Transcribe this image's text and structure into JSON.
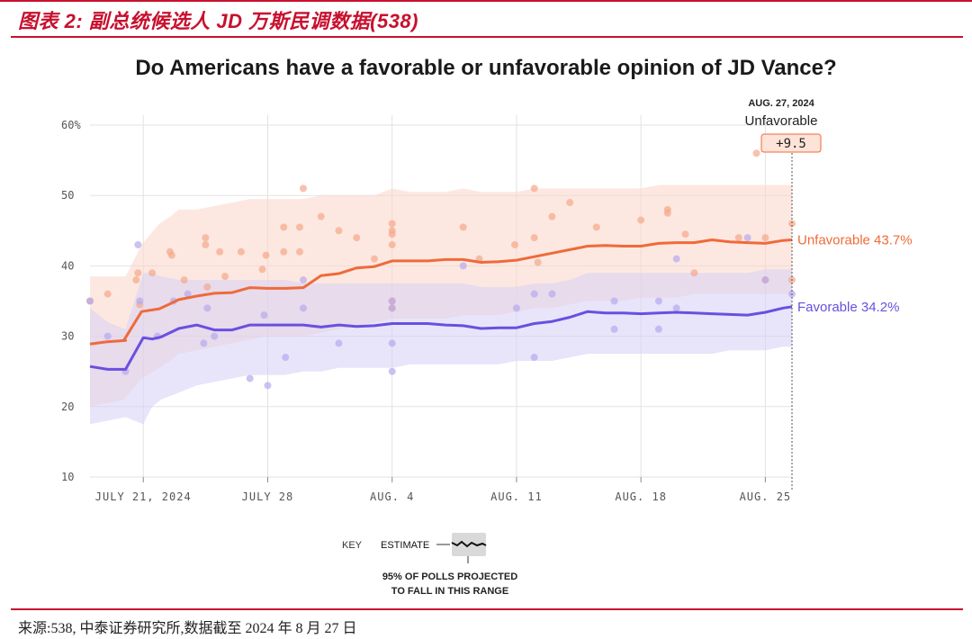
{
  "figure_header": {
    "title": "图表 2:   副总统候选人 JD 万斯民调数据(538)"
  },
  "chart_data": {
    "type": "line",
    "title": "Do Americans have a favorable or unfavorable opinion of JD Vance?",
    "ylim": [
      10,
      60
    ],
    "yticks": [
      "10",
      "20",
      "30",
      "40",
      "50",
      "60%"
    ],
    "xlim": [
      0,
      39.5
    ],
    "xticks": [
      {
        "x": 3,
        "label": "JULY 21, 2024"
      },
      {
        "x": 10,
        "label": "JULY 28"
      },
      {
        "x": 17,
        "label": "AUG. 4"
      },
      {
        "x": 24,
        "label": "AUG. 11"
      },
      {
        "x": 31,
        "label": "AUG. 18"
      },
      {
        "x": 38,
        "label": "AUG. 25"
      }
    ],
    "grid": true,
    "annotation": {
      "x": 39.5,
      "date": "AUG. 27, 2024",
      "label": "Unfavorable",
      "value": "+9.5"
    },
    "series": [
      {
        "name": "Unfavorable",
        "end_label": "Unfavorable 43.7%",
        "color": "#ef6a3a",
        "band_color": "#fbd6c8",
        "dot_color": "#f4a88a",
        "x": [
          0,
          0.9,
          2.0,
          1.9,
          2.9,
          3.9,
          4.5,
          5.0,
          6.0,
          7.0,
          8.0,
          9.0,
          10.0,
          11.0,
          12.0,
          13.0,
          14.0,
          15.0,
          16.0,
          17.0,
          18.0,
          19.0,
          20.0,
          21.0,
          22.0,
          23.0,
          24.0,
          25.0,
          26.0,
          27.0,
          28.0,
          29.0,
          30.0,
          31.0,
          32.0,
          33.0,
          34.0,
          35.0,
          36.0,
          37.0,
          38.0,
          39.0,
          39.5
        ],
        "values": [
          28.9,
          29.2,
          29.4,
          29.4,
          33.5,
          33.9,
          34.6,
          35.2,
          35.7,
          36.1,
          36.2,
          36.9,
          36.8,
          36.8,
          36.9,
          38.6,
          38.9,
          39.7,
          39.9,
          40.7,
          40.7,
          40.7,
          40.9,
          40.9,
          40.5,
          40.6,
          40.8,
          41.3,
          41.8,
          42.3,
          42.8,
          42.9,
          42.8,
          42.8,
          43.2,
          43.3,
          43.3,
          43.7,
          43.4,
          43.3,
          43.2,
          43.6,
          43.7
        ],
        "band_upper": [
          38.5,
          38.5,
          38.5,
          38,
          43,
          46,
          47,
          48,
          48,
          48.5,
          49,
          49.5,
          49.5,
          49.5,
          49.5,
          50,
          50,
          50,
          50,
          51,
          50.5,
          50.5,
          50.5,
          51,
          50.5,
          50.5,
          50.5,
          51,
          51,
          51,
          51,
          51,
          51,
          51,
          51.5,
          51.5,
          51.5,
          51.5,
          51.5,
          51.5,
          51.5,
          51.5,
          51.5
        ],
        "band_lower": [
          20,
          20.5,
          21,
          21,
          24,
          25.5,
          26.5,
          27.5,
          28,
          28.5,
          29,
          29.5,
          30,
          30,
          30,
          30.5,
          31,
          31.5,
          32,
          32.5,
          32.5,
          32.5,
          32.5,
          33,
          33,
          33,
          33.5,
          34,
          34,
          34.5,
          35,
          35,
          35,
          35.5,
          35.5,
          35.5,
          36,
          36,
          36,
          36,
          36,
          36,
          36
        ],
        "polls": [
          [
            0,
            35
          ],
          [
            1,
            36
          ],
          [
            2.6,
            38
          ],
          [
            2.7,
            39
          ],
          [
            2.8,
            34.5
          ],
          [
            3.5,
            39
          ],
          [
            4.5,
            42
          ],
          [
            4.6,
            41.5
          ],
          [
            5.3,
            38
          ],
          [
            6.5,
            44
          ],
          [
            6.5,
            43
          ],
          [
            6.6,
            37
          ],
          [
            7.3,
            42
          ],
          [
            7.6,
            38.5
          ],
          [
            8.5,
            42
          ],
          [
            9.7,
            39.5
          ],
          [
            9.9,
            41.5
          ],
          [
            10.9,
            42
          ],
          [
            10.9,
            45.5
          ],
          [
            11.8,
            45.5
          ],
          [
            11.8,
            42
          ],
          [
            12.0,
            51
          ],
          [
            13.0,
            47
          ],
          [
            14.0,
            45
          ],
          [
            15.0,
            44
          ],
          [
            16.0,
            41
          ],
          [
            17.0,
            46
          ],
          [
            17.0,
            45
          ],
          [
            17.0,
            44.5
          ],
          [
            17.0,
            43
          ],
          [
            17.0,
            35
          ],
          [
            17.0,
            34
          ],
          [
            21.0,
            45.5
          ],
          [
            21.9,
            41
          ],
          [
            23.9,
            43
          ],
          [
            25.0,
            44
          ],
          [
            25.0,
            51
          ],
          [
            25.2,
            40.5
          ],
          [
            26.0,
            47
          ],
          [
            27.0,
            49
          ],
          [
            28.5,
            45.5
          ],
          [
            31.0,
            46.5
          ],
          [
            32.5,
            47.5
          ],
          [
            32.5,
            48
          ],
          [
            33.5,
            44.5
          ],
          [
            34.0,
            39
          ],
          [
            36.5,
            44
          ],
          [
            37.5,
            56
          ],
          [
            38.0,
            44
          ],
          [
            38.0,
            38
          ],
          [
            39.5,
            46
          ],
          [
            39.5,
            38
          ]
        ]
      },
      {
        "name": "Favorable",
        "end_label": "Favorable 34.2%",
        "color": "#6a4fe0",
        "band_color": "#d6d0f5",
        "dot_color": "#b5aaee",
        "x": [
          0,
          1,
          2,
          3,
          3.5,
          4,
          5,
          6,
          7,
          8,
          9,
          10,
          11,
          12,
          13,
          14,
          15,
          16,
          17,
          18,
          19,
          20,
          21,
          22,
          23,
          24,
          25,
          26,
          27,
          28,
          29,
          30,
          31,
          32,
          33,
          34,
          35,
          36,
          37,
          38,
          39,
          39.5
        ],
        "values": [
          25.7,
          25.3,
          25.3,
          29.8,
          29.6,
          29.9,
          31.1,
          31.6,
          30.9,
          30.9,
          31.6,
          31.6,
          31.6,
          31.6,
          31.3,
          31.6,
          31.4,
          31.5,
          31.8,
          31.8,
          31.8,
          31.6,
          31.5,
          31.1,
          31.2,
          31.2,
          31.8,
          32.1,
          32.7,
          33.5,
          33.3,
          33.3,
          33.2,
          33.3,
          33.4,
          33.3,
          33.2,
          33.1,
          33.0,
          33.4,
          34.0,
          34.2
        ],
        "band_upper": [
          34,
          32,
          31,
          39,
          39,
          38.5,
          38,
          38,
          38,
          38,
          38,
          38,
          38,
          37.5,
          37.5,
          37.5,
          37.5,
          37.5,
          37.5,
          37.5,
          37.5,
          37.5,
          37.5,
          37,
          37,
          37,
          37.5,
          37.5,
          38,
          39,
          39,
          39,
          39,
          39,
          39,
          39,
          39,
          39,
          39,
          39.5,
          39.5,
          39.5
        ],
        "band_lower": [
          17.5,
          18,
          18.5,
          17.5,
          20,
          21,
          22,
          23,
          23.5,
          24,
          24.5,
          24.5,
          24.5,
          25,
          25,
          25.5,
          25.5,
          25.5,
          25.5,
          26,
          26,
          26,
          26,
          26,
          26,
          26.5,
          26.5,
          26.5,
          27,
          27.5,
          27.5,
          27.5,
          27.5,
          27.5,
          27.5,
          27.5,
          27.5,
          28,
          28,
          28,
          28.5,
          28.5
        ],
        "polls": [
          [
            0,
            35
          ],
          [
            1,
            30
          ],
          [
            2,
            25
          ],
          [
            2.7,
            43
          ],
          [
            2.8,
            35
          ],
          [
            3.8,
            30
          ],
          [
            4.7,
            35
          ],
          [
            5.5,
            36
          ],
          [
            6.4,
            29
          ],
          [
            6.6,
            34
          ],
          [
            7.0,
            30
          ],
          [
            9.0,
            24
          ],
          [
            9.8,
            33
          ],
          [
            10.0,
            23
          ],
          [
            11.0,
            27
          ],
          [
            12.0,
            38
          ],
          [
            12.0,
            34
          ],
          [
            14.0,
            29
          ],
          [
            17.0,
            34
          ],
          [
            17.0,
            29
          ],
          [
            17.0,
            25
          ],
          [
            17.0,
            35
          ],
          [
            21.0,
            40
          ],
          [
            24.0,
            34
          ],
          [
            25.0,
            36
          ],
          [
            25.0,
            27
          ],
          [
            26.0,
            36
          ],
          [
            29.5,
            35
          ],
          [
            29.5,
            31
          ],
          [
            32.0,
            35
          ],
          [
            32.0,
            31
          ],
          [
            33.0,
            34
          ],
          [
            33.0,
            41
          ],
          [
            37.0,
            44
          ],
          [
            38.0,
            38
          ],
          [
            39.5,
            36
          ]
        ]
      }
    ]
  },
  "legend": {
    "key_label": "KEY",
    "estimate_label": "ESTIMATE",
    "range_note_line1": "95% OF POLLS PROJECTED",
    "range_note_line2": "TO FALL IN THIS RANGE"
  },
  "source": {
    "text": "来源:538, 中泰证券研究所,数据截至 2024 年 8 月 27 日"
  }
}
